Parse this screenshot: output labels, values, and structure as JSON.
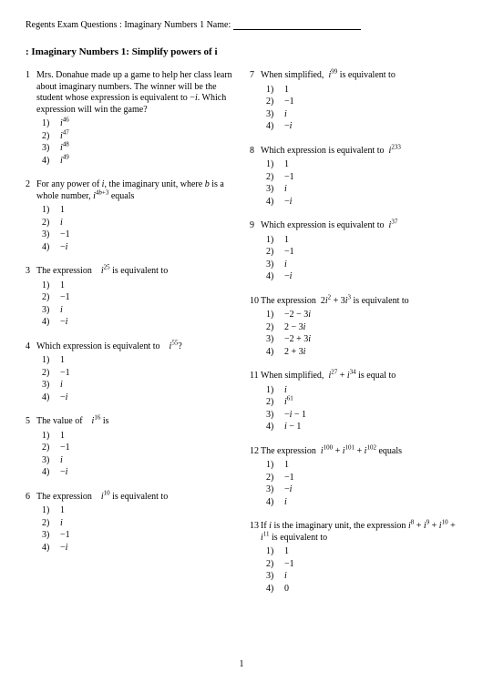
{
  "header_prefix": "Regents Exam Questions  : Imaginary Numbers 1 Name:",
  "title": ": Imaginary Numbers 1: Simplify powers of i",
  "page_number": "1",
  "left": [
    {
      "n": "1",
      "stem": "Mrs. Donahue made up a game to help her class learn about imaginary numbers.  The winner will be the student whose expression is equivalent to −<i class='var'>i</i>. Which expression will win the game?",
      "opts": [
        "<i class='var'>i</i><sup>46</sup>",
        "<i class='var'>i</i><sup>47</sup>",
        "<i class='var'>i</i><sup>48</sup>",
        "<i class='var'>i</i><sup>49</sup>"
      ]
    },
    {
      "n": "2",
      "stem": "For any power of <i class='var'>i</i>, the imaginary unit, where <i class='var'>b</i> is a whole number, <i class='var'>i</i><sup>4<i class='var'>b</i>+3</sup> equals",
      "opts": [
        "1",
        "<i class='var'>i</i>",
        "−1",
        "−<i class='var'>i</i>"
      ]
    },
    {
      "n": "3",
      "stem": "The expression&nbsp;&nbsp;&nbsp;&nbsp;<i class='var'>i</i><sup>25</sup>&nbsp;is equivalent to",
      "opts": [
        "1",
        "−1",
        "<i class='var'>i</i>",
        "−<i class='var'>i</i>"
      ]
    },
    {
      "n": "4",
      "stem": "Which expression is equivalent to&nbsp;&nbsp;&nbsp;&nbsp;<i class='var'>i</i><sup>55</sup>?",
      "opts": [
        "1",
        "−1",
        "<i class='var'>i</i>",
        "−<i class='var'>i</i>"
      ]
    },
    {
      "n": "5",
      "stem": "The value of&nbsp;&nbsp;&nbsp;&nbsp;<i class='var'>i</i><sup>16</sup> is",
      "opts": [
        "1",
        "−1",
        "<i class='var'>i</i>",
        "−<i class='var'>i</i>"
      ]
    },
    {
      "n": "6",
      "stem": "The expression&nbsp;&nbsp;&nbsp;&nbsp;<i class='var'>i</i><sup>10</sup>&nbsp;is equivalent to",
      "opts": [
        "1",
        "<i class='var'>i</i>",
        "−1",
        "−<i class='var'>i</i>"
      ]
    }
  ],
  "right": [
    {
      "n": "7",
      "stem": "When simplified,&nbsp;&nbsp;<i class='var'>i</i><sup>99</sup>&nbsp;is equivalent to",
      "opts": [
        "1",
        "−1",
        "<i class='var'>i</i>",
        "−<i class='var'>i</i>"
      ]
    },
    {
      "n": "8",
      "stem": "Which expression is equivalent to&nbsp;&nbsp;<i class='var'>i</i><sup>233</sup>",
      "opts": [
        "1",
        "−1",
        "<i class='var'>i</i>",
        "−<i class='var'>i</i>"
      ]
    },
    {
      "n": "9",
      "stem": "Which expression is equivalent to&nbsp;&nbsp;<i class='var'>i</i><sup>37</sup>",
      "opts": [
        "1",
        "−1",
        "<i class='var'>i</i>",
        "−<i class='var'>i</i>"
      ]
    },
    {
      "n": "10",
      "stem": "The expression&nbsp;&nbsp;2<i class='var'>i</i><sup>2</sup> + 3<i class='var'>i</i><sup>3</sup> is equivalent to",
      "opts": [
        "−2 − 3<i class='var'>i</i>",
        "2 − 3<i class='var'>i</i>",
        "−2 + 3<i class='var'>i</i>",
        "2 + 3<i class='var'>i</i>"
      ]
    },
    {
      "n": "11",
      "stem": "When simplified,&nbsp;&nbsp;<i class='var'>i</i><sup>27</sup> + <i class='var'>i</i><sup>34</sup>&nbsp;is equal to",
      "opts": [
        "<i class='var'>i</i>",
        "<i class='var'>i</i><sup>61</sup>",
        "−<i class='var'>i</i> − 1",
        "<i class='var'>i</i> − 1"
      ]
    },
    {
      "n": "12",
      "stem": "The expression&nbsp;&nbsp;<i class='var'>i</i><sup>100</sup> + <i class='var'>i</i><sup>101</sup> + <i class='var'>i</i><sup>102</sup>&nbsp;equals",
      "opts": [
        "1",
        "−1",
        "−<i class='var'>i</i>",
        "<i class='var'>i</i>"
      ]
    },
    {
      "n": "13",
      "stem": "If <i class='var'>i</i> is the imaginary unit, the expression <i class='var'>i</i><sup>8</sup> + <i class='var'>i</i><sup>9</sup> + <i class='var'>i</i><sup>10</sup> + <i class='var'>i</i><sup>11</sup>&nbsp;is equivalent to",
      "opts": [
        "1",
        "−1",
        "<i class='var'>i</i>",
        "0"
      ]
    }
  ]
}
